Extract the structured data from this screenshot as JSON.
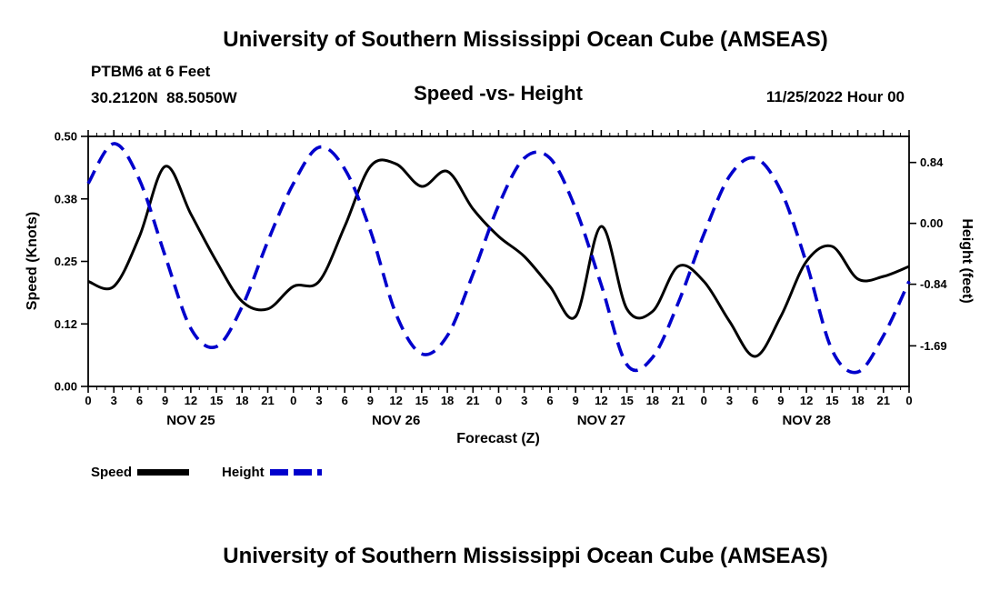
{
  "page": {
    "top_title": "University of Southern Mississippi Ocean Cube (AMSEAS)",
    "bottom_title": "University of Southern Mississippi Ocean Cube (AMSEAS)"
  },
  "header": {
    "station": "PTBM6 at 6 Feet",
    "coordinates": "30.2120N  88.5050W",
    "chart_title": "Speed -vs- Height",
    "run_time": "11/25/2022 Hour 00"
  },
  "chart_data": {
    "type": "line",
    "title": "Speed -vs- Height",
    "xlabel": "Forecast (Z)",
    "ylabel_left": "Speed (Knots)",
    "ylabel_right": "Height (feet)",
    "legend_position": "bottom-left",
    "grid": false,
    "x_hours": [
      0,
      3,
      6,
      9,
      12,
      15,
      18,
      21,
      24,
      27,
      30,
      33,
      36,
      39,
      42,
      45,
      48,
      51,
      54,
      57,
      60,
      63,
      66,
      69,
      72,
      75,
      78,
      81,
      84,
      87,
      90,
      93,
      96
    ],
    "x_tick_labels": [
      "0",
      "3",
      "6",
      "9",
      "12",
      "15",
      "18",
      "21",
      "0",
      "3",
      "6",
      "9",
      "12",
      "15",
      "18",
      "21",
      "0",
      "3",
      "6",
      "9",
      "12",
      "15",
      "18",
      "21",
      "0",
      "3",
      "6",
      "9",
      "12",
      "15",
      "18",
      "21",
      "0"
    ],
    "day_labels": [
      "NOV 25",
      "NOV 26",
      "NOV 27",
      "NOV 28"
    ],
    "left_axis": {
      "min": 0.0,
      "max": 0.5,
      "ticks": [
        "0.00",
        "0.12",
        "0.25",
        "0.38",
        "0.50"
      ]
    },
    "right_axis": {
      "min": -2.25,
      "max": 1.2,
      "ticks": [
        {
          "value": 0.84,
          "label": "0.84"
        },
        {
          "value": 0.0,
          "label": "0.00"
        },
        {
          "value": -0.84,
          "label": "-0.84"
        },
        {
          "value": -1.69,
          "label": "-1.69"
        }
      ]
    },
    "series": [
      {
        "name": "Speed",
        "axis": "left",
        "color": "#000000",
        "style": "solid",
        "values": [
          0.21,
          0.2,
          0.3,
          0.44,
          0.345,
          0.25,
          0.17,
          0.155,
          0.2,
          0.21,
          0.32,
          0.44,
          0.445,
          0.4,
          0.43,
          0.355,
          0.3,
          0.26,
          0.2,
          0.14,
          0.32,
          0.155,
          0.15,
          0.24,
          0.21,
          0.13,
          0.06,
          0.14,
          0.25,
          0.28,
          0.215,
          0.22,
          0.24
        ]
      },
      {
        "name": "Height",
        "axis": "right",
        "color": "#0000cc",
        "style": "dashed",
        "values": [
          0.55,
          1.1,
          0.6,
          -0.45,
          -1.45,
          -1.7,
          -1.15,
          -0.25,
          0.55,
          1.05,
          0.75,
          -0.1,
          -1.25,
          -1.8,
          -1.55,
          -0.7,
          0.25,
          0.9,
          0.9,
          0.2,
          -0.85,
          -1.95,
          -1.85,
          -1.1,
          -0.15,
          0.65,
          0.9,
          0.45,
          -0.55,
          -1.75,
          -2.05,
          -1.55,
          -0.8
        ]
      }
    ]
  }
}
